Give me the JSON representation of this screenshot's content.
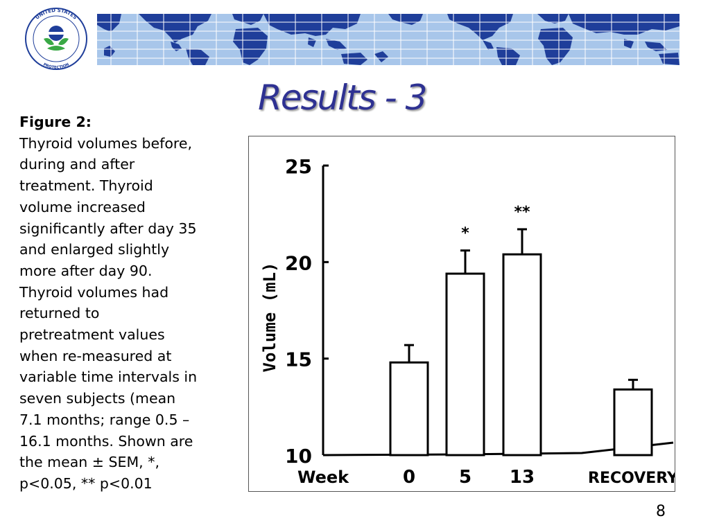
{
  "slide": {
    "title": "Results - 3",
    "page_number": "8"
  },
  "caption": {
    "heading": "Figure 2:",
    "lines": [
      "Thyroid volumes before,",
      "during and after",
      "treatment. Thyroid",
      "volume increased",
      "significantly after day 35",
      "and enlarged slightly",
      "more after day 90.",
      "Thyroid volumes had",
      "returned to",
      "pretreatment values",
      "when re-measured at",
      "variable time intervals in",
      "seven subjects (mean",
      "7.1 months; range 0.5 –",
      "16.1 months. Shown are",
      "the mean ± SEM, *,",
      "p<0.05, ** p<0.01"
    ]
  },
  "logo": {
    "text_top": "UNITED STATES",
    "text_left": "ENVIRONMENTAL",
    "text_bottom": "PROTECTION",
    "text_right": "AGENCY"
  },
  "colors": {
    "title": "#2e3192",
    "map_ocean": "#a8c6ea",
    "map_land": "#1f3e9a",
    "grid": "#ffffff"
  },
  "chart_data": {
    "type": "bar",
    "categories": [
      "0",
      "5",
      "13",
      "RECOVERY"
    ],
    "values": [
      14.8,
      19.4,
      20.4,
      13.4
    ],
    "errors": [
      0.9,
      1.2,
      1.3,
      0.5
    ],
    "significance": [
      "",
      "*",
      "**",
      ""
    ],
    "xlabel": "Week",
    "ylabel": "Volume (mL)",
    "ylim": [
      10,
      25
    ],
    "yticks": [
      "10",
      "15",
      "20",
      "25"
    ],
    "grid": false
  }
}
